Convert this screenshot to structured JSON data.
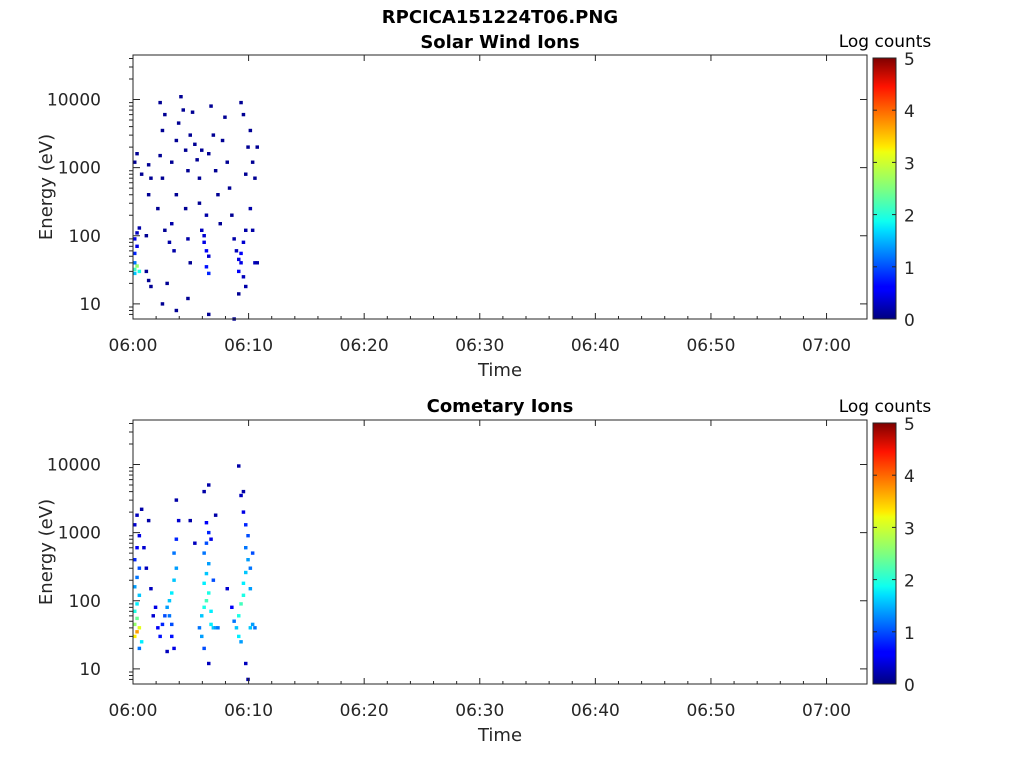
{
  "figure_title": "RPCICA151224T06.PNG",
  "chart_data": [
    {
      "type": "heatmap",
      "title": "Solar Wind Ions",
      "xlabel": "Time",
      "ylabel": "Energy (eV)",
      "x_tick_labels": [
        "06:00",
        "06:10",
        "06:20",
        "06:30",
        "06:40",
        "06:50",
        "07:00"
      ],
      "x_range_minutes": [
        0,
        63.5
      ],
      "y_scale": "log",
      "y_range": [
        6,
        45000
      ],
      "y_tick_values": [
        10,
        100,
        1000,
        10000
      ],
      "y_tick_labels": [
        "10",
        "100",
        "1000",
        "10000"
      ],
      "colorbar": {
        "label": "Log counts",
        "range": [
          0,
          5
        ],
        "tick_labels": [
          "0",
          "1",
          "2",
          "3",
          "4",
          "5"
        ],
        "colormap": "jet"
      },
      "cells": [
        [
          0.0,
          28,
          1.6
        ],
        [
          0.0,
          32,
          2.2
        ],
        [
          0.2,
          36,
          2.6
        ],
        [
          0.4,
          30,
          2.0
        ],
        [
          0.0,
          40,
          1.2
        ],
        [
          0.0,
          55,
          0.8
        ],
        [
          0.2,
          70,
          0.5
        ],
        [
          0.0,
          90,
          0.5
        ],
        [
          0.2,
          110,
          0.3
        ],
        [
          0.4,
          130,
          0.2
        ],
        [
          0.0,
          1200,
          0.1
        ],
        [
          0.2,
          1600,
          0.1
        ],
        [
          0.6,
          800,
          0.1
        ],
        [
          1.0,
          100,
          0.1
        ],
        [
          1.2,
          400,
          0.1
        ],
        [
          1.4,
          700,
          0.1
        ],
        [
          1.2,
          1100,
          0.1
        ],
        [
          1.0,
          30,
          0.1
        ],
        [
          1.2,
          22,
          0.1
        ],
        [
          2.0,
          250,
          0.1
        ],
        [
          2.2,
          1500,
          0.1
        ],
        [
          2.4,
          3500,
          0.1
        ],
        [
          2.2,
          9000,
          0.1
        ],
        [
          2.6,
          6000,
          0.1
        ],
        [
          2.4,
          700,
          0.1
        ],
        [
          2.8,
          20,
          0.1
        ],
        [
          2.6,
          120,
          0.1
        ],
        [
          3.0,
          80,
          0.2
        ],
        [
          3.2,
          150,
          0.2
        ],
        [
          3.4,
          60,
          0.2
        ],
        [
          3.2,
          1200,
          0.1
        ],
        [
          3.6,
          2500,
          0.1
        ],
        [
          3.8,
          4500,
          0.1
        ],
        [
          3.6,
          400,
          0.1
        ],
        [
          4.0,
          11000,
          0.1
        ],
        [
          4.2,
          7000,
          0.1
        ],
        [
          4.4,
          1800,
          0.1
        ],
        [
          4.6,
          900,
          0.1
        ],
        [
          4.8,
          3000,
          0.1
        ],
        [
          4.4,
          250,
          0.1
        ],
        [
          4.6,
          90,
          0.2
        ],
        [
          4.8,
          40,
          0.1
        ],
        [
          5.0,
          6500,
          0.1
        ],
        [
          5.2,
          2200,
          0.1
        ],
        [
          5.4,
          1300,
          0.1
        ],
        [
          5.6,
          700,
          0.1
        ],
        [
          5.8,
          1800,
          0.1
        ],
        [
          5.6,
          300,
          0.1
        ],
        [
          5.8,
          120,
          0.3
        ],
        [
          6.0,
          80,
          0.5
        ],
        [
          6.2,
          60,
          0.6
        ],
        [
          6.0,
          100,
          0.4
        ],
        [
          6.4,
          50,
          0.4
        ],
        [
          6.2,
          35,
          0.7
        ],
        [
          6.4,
          28,
          0.8
        ],
        [
          6.2,
          200,
          0.2
        ],
        [
          6.4,
          1600,
          0.1
        ],
        [
          6.6,
          8000,
          0.1
        ],
        [
          6.8,
          3000,
          0.1
        ],
        [
          7.0,
          900,
          0.1
        ],
        [
          7.2,
          400,
          0.1
        ],
        [
          7.4,
          150,
          0.1
        ],
        [
          7.6,
          2500,
          0.1
        ],
        [
          7.8,
          5500,
          0.1
        ],
        [
          8.0,
          1200,
          0.1
        ],
        [
          8.2,
          500,
          0.1
        ],
        [
          8.4,
          200,
          0.1
        ],
        [
          8.6,
          90,
          0.2
        ],
        [
          8.8,
          60,
          0.3
        ],
        [
          9.0,
          45,
          0.5
        ],
        [
          9.0,
          30,
          0.6
        ],
        [
          9.2,
          55,
          0.6
        ],
        [
          9.2,
          40,
          0.5
        ],
        [
          9.4,
          80,
          0.4
        ],
        [
          9.4,
          25,
          0.3
        ],
        [
          9.6,
          120,
          0.2
        ],
        [
          9.6,
          800,
          0.1
        ],
        [
          9.8,
          2000,
          0.1
        ],
        [
          9.2,
          9000,
          0.1
        ],
        [
          9.4,
          6000,
          0.1
        ],
        [
          10.0,
          3500,
          0.1
        ],
        [
          10.2,
          1200,
          0.1
        ],
        [
          10.4,
          700,
          0.1
        ],
        [
          10.0,
          250,
          0.2
        ],
        [
          10.2,
          120,
          0.2
        ],
        [
          10.4,
          40,
          0.3
        ],
        [
          10.6,
          40,
          0.2
        ],
        [
          10.6,
          2000,
          0.1
        ],
        [
          9.6,
          18,
          0.2
        ],
        [
          6.4,
          7,
          0.1
        ],
        [
          3.6,
          8,
          0.1
        ],
        [
          4.6,
          12,
          0.1
        ],
        [
          2.4,
          10,
          0.1
        ],
        [
          1.4,
          18,
          0.1
        ],
        [
          8.6,
          6,
          0.1
        ],
        [
          9.0,
          14,
          0.1
        ]
      ]
    },
    {
      "type": "heatmap",
      "title": "Cometary Ions",
      "xlabel": "Time",
      "ylabel": "Energy (eV)",
      "x_tick_labels": [
        "06:00",
        "06:10",
        "06:20",
        "06:30",
        "06:40",
        "06:50",
        "07:00"
      ],
      "x_range_minutes": [
        0,
        63.5
      ],
      "y_scale": "log",
      "y_range": [
        6,
        45000
      ],
      "y_tick_values": [
        10,
        100,
        1000,
        10000
      ],
      "y_tick_labels": [
        "10",
        "100",
        "1000",
        "10000"
      ],
      "colorbar": {
        "label": "Log counts",
        "range": [
          0,
          5
        ],
        "tick_labels": [
          "0",
          "1",
          "2",
          "3",
          "4",
          "5"
        ],
        "colormap": "jet"
      },
      "cells": [
        [
          0.0,
          30,
          3.2
        ],
        [
          0.2,
          35,
          3.6
        ],
        [
          0.4,
          40,
          3.0
        ],
        [
          0.0,
          45,
          2.6
        ],
        [
          0.2,
          55,
          2.4
        ],
        [
          0.0,
          70,
          2.0
        ],
        [
          0.2,
          90,
          1.8
        ],
        [
          0.4,
          120,
          1.6
        ],
        [
          0.0,
          160,
          1.4
        ],
        [
          0.2,
          220,
          1.2
        ],
        [
          0.4,
          300,
          1.0
        ],
        [
          0.0,
          400,
          0.8
        ],
        [
          0.2,
          600,
          0.6
        ],
        [
          0.4,
          900,
          0.5
        ],
        [
          0.0,
          1300,
          0.4
        ],
        [
          0.2,
          1800,
          0.3
        ],
        [
          0.6,
          2200,
          0.2
        ],
        [
          0.6,
          25,
          1.8
        ],
        [
          0.4,
          20,
          1.2
        ],
        [
          0.8,
          600,
          0.4
        ],
        [
          1.0,
          300,
          0.3
        ],
        [
          1.2,
          1500,
          0.2
        ],
        [
          1.4,
          150,
          0.3
        ],
        [
          1.6,
          60,
          0.4
        ],
        [
          1.8,
          80,
          0.5
        ],
        [
          2.0,
          40,
          0.6
        ],
        [
          2.2,
          30,
          0.7
        ],
        [
          2.4,
          45,
          0.8
        ],
        [
          2.6,
          60,
          1.0
        ],
        [
          2.8,
          80,
          1.4
        ],
        [
          3.0,
          100,
          1.6
        ],
        [
          3.2,
          130,
          1.8
        ],
        [
          3.0,
          60,
          1.2
        ],
        [
          3.2,
          45,
          1.0
        ],
        [
          3.4,
          200,
          1.6
        ],
        [
          3.6,
          300,
          1.4
        ],
        [
          3.4,
          500,
          1.2
        ],
        [
          3.6,
          800,
          0.8
        ],
        [
          3.8,
          1500,
          0.4
        ],
        [
          3.6,
          3000,
          0.2
        ],
        [
          3.2,
          30,
          0.7
        ],
        [
          3.4,
          20,
          0.5
        ],
        [
          2.8,
          18,
          0.3
        ],
        [
          4.8,
          1500,
          0.2
        ],
        [
          5.2,
          700,
          0.3
        ],
        [
          5.6,
          40,
          1.2
        ],
        [
          5.8,
          60,
          1.6
        ],
        [
          6.0,
          80,
          2.0
        ],
        [
          6.2,
          100,
          2.2
        ],
        [
          6.4,
          130,
          2.0
        ],
        [
          6.0,
          180,
          1.8
        ],
        [
          6.2,
          250,
          1.6
        ],
        [
          6.4,
          350,
          1.4
        ],
        [
          6.0,
          500,
          1.2
        ],
        [
          6.2,
          700,
          1.0
        ],
        [
          6.4,
          1000,
          0.8
        ],
        [
          6.2,
          1400,
          0.6
        ],
        [
          6.0,
          4000,
          0.2
        ],
        [
          6.4,
          5000,
          0.2
        ],
        [
          5.8,
          30,
          1.4
        ],
        [
          6.0,
          20,
          1.0
        ],
        [
          6.6,
          45,
          1.8
        ],
        [
          6.8,
          40,
          1.6
        ],
        [
          7.0,
          40,
          1.4
        ],
        [
          7.2,
          40,
          1.2
        ],
        [
          6.6,
          70,
          1.8
        ],
        [
          6.8,
          200,
          1.0
        ],
        [
          6.6,
          800,
          0.5
        ],
        [
          7.0,
          1800,
          0.2
        ],
        [
          6.4,
          12,
          0.3
        ],
        [
          8.0,
          150,
          0.4
        ],
        [
          8.4,
          80,
          0.6
        ],
        [
          8.6,
          50,
          1.2
        ],
        [
          8.8,
          40,
          1.6
        ],
        [
          9.0,
          60,
          2.0
        ],
        [
          9.2,
          90,
          2.2
        ],
        [
          9.4,
          120,
          2.0
        ],
        [
          9.0,
          30,
          1.8
        ],
        [
          9.2,
          25,
          1.4
        ],
        [
          9.4,
          180,
          1.8
        ],
        [
          9.6,
          260,
          1.6
        ],
        [
          9.8,
          400,
          1.4
        ],
        [
          9.6,
          600,
          1.2
        ],
        [
          9.8,
          900,
          1.0
        ],
        [
          9.6,
          1300,
          0.8
        ],
        [
          9.4,
          2000,
          0.5
        ],
        [
          9.2,
          3500,
          0.3
        ],
        [
          9.0,
          9500,
          0.2
        ],
        [
          9.4,
          4000,
          0.2
        ],
        [
          10.0,
          40,
          1.6
        ],
        [
          10.2,
          45,
          1.4
        ],
        [
          10.4,
          40,
          1.2
        ],
        [
          10.0,
          300,
          1.2
        ],
        [
          10.2,
          500,
          1.0
        ],
        [
          10.0,
          150,
          1.4
        ],
        [
          9.6,
          12,
          0.3
        ],
        [
          9.8,
          7,
          0.2
        ]
      ]
    }
  ]
}
